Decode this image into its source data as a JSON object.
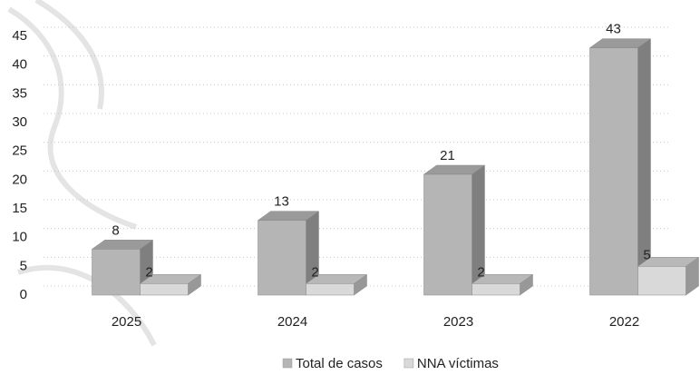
{
  "chart_data": {
    "type": "bar3d",
    "categories": [
      "2025",
      "2024",
      "2023",
      "2022"
    ],
    "series": [
      {
        "name": "Total de casos",
        "color": "#b5b5b5",
        "values": [
          8,
          13,
          21,
          43
        ]
      },
      {
        "name": "NNA víctimas",
        "color": "#d9d9d9",
        "values": [
          2,
          2,
          2,
          5
        ]
      }
    ],
    "ylim": [
      0,
      45
    ],
    "yticks": [
      0,
      5,
      10,
      15,
      20,
      25,
      30,
      35,
      40,
      45
    ],
    "grid": true
  }
}
